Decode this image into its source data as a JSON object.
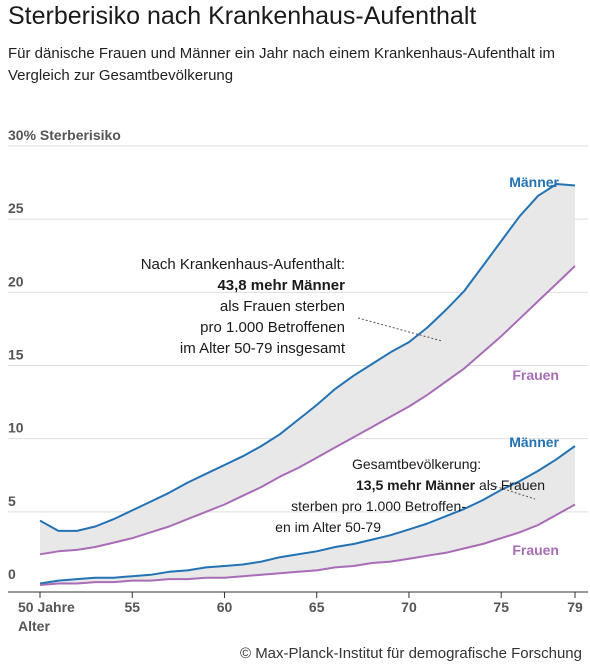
{
  "header": {
    "title": "Sterberisiko nach Krankenhaus-Aufenthalt",
    "subtitle": "Für dänische Frauen und Männer ein Jahr nach einem Krankenhaus-Aufenthalt im Vergleich zur Gesamtbevölkerung"
  },
  "credit": "© Max-Planck-Institut für demografische Forschung",
  "chart_data": {
    "type": "area",
    "ylim": [
      0,
      30
    ],
    "xlim": [
      50,
      79
    ],
    "y_ticks": [
      {
        "value": 0,
        "label": "0"
      },
      {
        "value": 5,
        "label": "5"
      },
      {
        "value": 10,
        "label": "10"
      },
      {
        "value": 15,
        "label": "15"
      },
      {
        "value": 20,
        "label": "20"
      },
      {
        "value": 25,
        "label": "25"
      },
      {
        "value": 30,
        "label": "30% Sterberisiko"
      }
    ],
    "x_ticks": [
      {
        "value": 50,
        "label": "50 Jahre"
      },
      {
        "value": 55,
        "label": "55"
      },
      {
        "value": 60,
        "label": "60"
      },
      {
        "value": 65,
        "label": "65"
      },
      {
        "value": 70,
        "label": "70"
      },
      {
        "value": 75,
        "label": "75"
      },
      {
        "value": 79,
        "label": "79"
      }
    ],
    "xlabel": "Alter",
    "x": [
      50,
      51,
      52,
      53,
      54,
      55,
      56,
      57,
      58,
      59,
      60,
      61,
      62,
      63,
      64,
      65,
      66,
      67,
      68,
      69,
      70,
      71,
      72,
      73,
      74,
      75,
      76,
      77,
      78,
      79
    ],
    "series": [
      {
        "name": "Männer",
        "group": "Nach Krankenhaus-Aufenthalt",
        "color": "#2272b4",
        "values": [
          4.4,
          3.7,
          3.7,
          4.0,
          4.5,
          5.1,
          5.7,
          6.3,
          7.0,
          7.6,
          8.2,
          8.8,
          9.5,
          10.3,
          11.3,
          12.3,
          13.4,
          14.3,
          15.1,
          15.9,
          16.6,
          17.6,
          18.8,
          20.1,
          21.8,
          23.5,
          25.2,
          26.6,
          27.4,
          27.3
        ]
      },
      {
        "name": "Frauen",
        "group": "Nach Krankenhaus-Aufenthalt",
        "color": "#a86db6",
        "values": [
          2.1,
          2.3,
          2.4,
          2.6,
          2.9,
          3.2,
          3.6,
          4.0,
          4.5,
          5.0,
          5.5,
          6.1,
          6.7,
          7.4,
          8.0,
          8.7,
          9.4,
          10.1,
          10.8,
          11.5,
          12.2,
          13.0,
          13.9,
          14.8,
          15.9,
          17.0,
          18.2,
          19.4,
          20.6,
          21.8
        ]
      },
      {
        "name": "Männer",
        "group": "Gesamtbevölkerung",
        "color": "#2272b4",
        "values": [
          0.1,
          0.3,
          0.4,
          0.5,
          0.5,
          0.6,
          0.7,
          0.9,
          1.0,
          1.2,
          1.3,
          1.4,
          1.6,
          1.9,
          2.1,
          2.3,
          2.6,
          2.8,
          3.1,
          3.4,
          3.8,
          4.2,
          4.7,
          5.2,
          5.8,
          6.5,
          7.1,
          7.8,
          8.6,
          9.5
        ]
      },
      {
        "name": "Frauen",
        "group": "Gesamtbevölkerung",
        "color": "#a86db6",
        "values": [
          0.0,
          0.1,
          0.1,
          0.2,
          0.2,
          0.3,
          0.3,
          0.4,
          0.4,
          0.5,
          0.5,
          0.6,
          0.7,
          0.8,
          0.9,
          1.0,
          1.2,
          1.3,
          1.5,
          1.6,
          1.8,
          2.0,
          2.2,
          2.5,
          2.8,
          3.2,
          3.6,
          4.1,
          4.8,
          5.5
        ]
      }
    ],
    "fill_color": "#e8e8e8",
    "annotations": {
      "hospital": {
        "lines": [
          "Nach Krankenhaus-Aufenthalt:",
          "43,8 mehr Männer",
          "als Frauen sterben",
          "pro 1.000 Betroffenen",
          "im Alter 50-79 insgesamt"
        ],
        "bold_line": "43,8 mehr Männer"
      },
      "population": {
        "line1": "Gesamtbevölkerung:",
        "line2_bold": "13,5 mehr Männer",
        "line2_rest": " als Frauen",
        "line3": "sterben pro 1.000 Betroffen-",
        "line4": "en im Alter 50-79"
      }
    },
    "grid": true
  }
}
